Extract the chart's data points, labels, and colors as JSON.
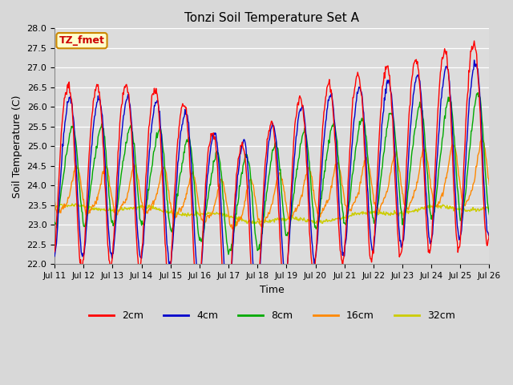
{
  "title": "Tonzi Soil Temperature Set A",
  "xlabel": "Time",
  "ylabel": "Soil Temperature (C)",
  "ylim": [
    22.0,
    28.0
  ],
  "yticks": [
    22.0,
    22.5,
    23.0,
    23.5,
    24.0,
    24.5,
    25.0,
    25.5,
    26.0,
    26.5,
    27.0,
    27.5,
    28.0
  ],
  "xtick_labels": [
    "Jul 11",
    "Jul 12",
    "Jul 13",
    "Jul 14",
    "Jul 15",
    "Jul 16",
    "Jul 17",
    "Jul 18",
    "Jul 19",
    "Jul 20",
    "Jul 21",
    "Jul 22",
    "Jul 23",
    "Jul 24",
    "Jul 25",
    "Jul 26"
  ],
  "colors": {
    "2cm": "#FF0000",
    "4cm": "#0000CC",
    "8cm": "#00AA00",
    "16cm": "#FF8800",
    "32cm": "#CCCC00"
  },
  "legend_label": "TZ_fmet",
  "legend_bg": "#FFFFCC",
  "legend_border": "#CC8800",
  "fig_bg": "#D8D8D8",
  "plot_bg": "#DCDCDC"
}
